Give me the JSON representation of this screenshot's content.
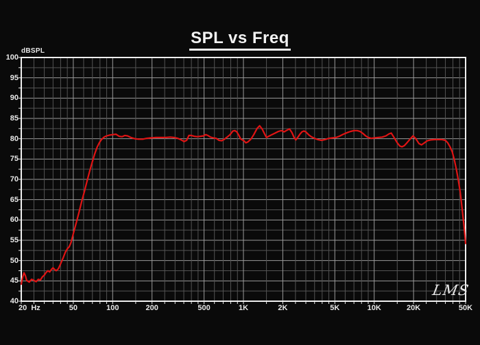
{
  "title": "SPL vs Freq",
  "logo": "LMS",
  "y_axis": {
    "unit_label": "dBSPL",
    "min": 40,
    "max": 100,
    "major_step": 5,
    "minor_step": 2.5,
    "tick_labels": [
      "100",
      "95",
      "90",
      "85",
      "80",
      "75",
      "70",
      "65",
      "60",
      "55",
      "50",
      "45",
      "40"
    ]
  },
  "x_axis": {
    "min_hz": 20,
    "max_hz": 50000,
    "unit_label": "Hz",
    "gridline_freqs": [
      20,
      25,
      30,
      35,
      40,
      45,
      50,
      60,
      70,
      80,
      90,
      100,
      150,
      200,
      250,
      300,
      350,
      400,
      450,
      500,
      600,
      700,
      800,
      900,
      1000,
      1500,
      2000,
      2500,
      3000,
      3500,
      4000,
      4500,
      5000,
      6000,
      7000,
      8000,
      9000,
      10000,
      15000,
      20000,
      25000,
      30000,
      35000,
      40000,
      45000,
      50000
    ],
    "major_freqs": [
      20,
      50,
      100,
      200,
      500,
      1000,
      2000,
      5000,
      10000,
      20000,
      50000
    ],
    "tick_labels": [
      {
        "hz": 20,
        "label": "20  Hz",
        "align": "left"
      },
      {
        "hz": 50,
        "label": "50"
      },
      {
        "hz": 100,
        "label": "100"
      },
      {
        "hz": 200,
        "label": "200"
      },
      {
        "hz": 500,
        "label": "500"
      },
      {
        "hz": 1000,
        "label": "1K"
      },
      {
        "hz": 2000,
        "label": "2K"
      },
      {
        "hz": 5000,
        "label": "5K"
      },
      {
        "hz": 10000,
        "label": "10K"
      },
      {
        "hz": 20000,
        "label": "20K"
      },
      {
        "hz": 50000,
        "label": "50K"
      }
    ]
  },
  "colors": {
    "background": "#0a0a0a",
    "grid_minor": "#545454",
    "grid_major": "#9b9b9b",
    "border": "#f0f0f0",
    "curve": "#e01414",
    "text": "#e9e9e9"
  },
  "chart_data": {
    "type": "line",
    "title": "SPL vs Freq",
    "xlabel": "Hz",
    "ylabel": "dBSPL",
    "x_scale": "log",
    "xlim": [
      20,
      50000
    ],
    "ylim": [
      40,
      100
    ],
    "grid": true,
    "legend": "none",
    "series": [
      {
        "name": "SPL",
        "color": "#e01414",
        "points": [
          [
            20,
            44.2
          ],
          [
            20.5,
            45.9
          ],
          [
            21,
            47.0
          ],
          [
            21.5,
            46.3
          ],
          [
            22,
            45.1
          ],
          [
            23,
            44.7
          ],
          [
            24,
            45.4
          ],
          [
            25,
            45.1
          ],
          [
            26,
            44.8
          ],
          [
            27,
            45.4
          ],
          [
            28,
            45.2
          ],
          [
            29,
            46.0
          ],
          [
            30,
            46.4
          ],
          [
            31,
            47.1
          ],
          [
            32,
            47.5
          ],
          [
            33,
            47.2
          ],
          [
            34,
            47.8
          ],
          [
            35,
            48.2
          ],
          [
            36,
            47.8
          ],
          [
            37,
            47.5
          ],
          [
            38.5,
            48.0
          ],
          [
            40,
            49.2
          ],
          [
            42,
            50.8
          ],
          [
            43.5,
            52.1
          ],
          [
            45,
            52.9
          ],
          [
            46.5,
            53.4
          ],
          [
            48,
            54.4
          ],
          [
            50,
            56.6
          ],
          [
            52,
            58.6
          ],
          [
            55,
            61.6
          ],
          [
            58,
            64.6
          ],
          [
            61,
            67.2
          ],
          [
            64,
            69.8
          ],
          [
            67,
            72.2
          ],
          [
            70,
            74.4
          ],
          [
            73,
            76.3
          ],
          [
            76,
            77.9
          ],
          [
            79,
            79.0
          ],
          [
            82,
            79.8
          ],
          [
            86,
            80.4
          ],
          [
            90,
            80.7
          ],
          [
            95,
            80.9
          ],
          [
            100,
            81.0
          ],
          [
            106,
            81.1
          ],
          [
            112,
            80.6
          ],
          [
            118,
            80.5
          ],
          [
            124,
            80.8
          ],
          [
            130,
            80.7
          ],
          [
            138,
            80.3
          ],
          [
            148,
            80.0
          ],
          [
            158,
            79.9
          ],
          [
            170,
            79.9
          ],
          [
            182,
            80.1
          ],
          [
            195,
            80.2
          ],
          [
            215,
            80.3
          ],
          [
            235,
            80.3
          ],
          [
            255,
            80.3
          ],
          [
            275,
            80.4
          ],
          [
            295,
            80.3
          ],
          [
            315,
            80.1
          ],
          [
            335,
            79.7
          ],
          [
            352,
            79.3
          ],
          [
            368,
            79.6
          ],
          [
            383,
            80.8
          ],
          [
            400,
            80.8
          ],
          [
            420,
            80.6
          ],
          [
            445,
            80.5
          ],
          [
            470,
            80.6
          ],
          [
            495,
            80.7
          ],
          [
            515,
            81.0
          ],
          [
            535,
            80.8
          ],
          [
            560,
            80.4
          ],
          [
            590,
            80.2
          ],
          [
            620,
            80.1
          ],
          [
            650,
            79.6
          ],
          [
            680,
            79.5
          ],
          [
            710,
            79.8
          ],
          [
            750,
            80.4
          ],
          [
            790,
            81.0
          ],
          [
            830,
            81.9
          ],
          [
            860,
            82.0
          ],
          [
            890,
            81.7
          ],
          [
            920,
            80.9
          ],
          [
            950,
            80.0
          ],
          [
            980,
            79.7
          ],
          [
            1010,
            79.5
          ],
          [
            1045,
            79.0
          ],
          [
            1080,
            79.2
          ],
          [
            1140,
            79.9
          ],
          [
            1200,
            81.0
          ],
          [
            1270,
            82.5
          ],
          [
            1330,
            83.2
          ],
          [
            1390,
            82.4
          ],
          [
            1450,
            81.2
          ],
          [
            1500,
            80.3
          ],
          [
            1560,
            80.6
          ],
          [
            1650,
            81.0
          ],
          [
            1750,
            81.4
          ],
          [
            1850,
            81.8
          ],
          [
            1950,
            82.0
          ],
          [
            2050,
            81.7
          ],
          [
            2150,
            82.1
          ],
          [
            2250,
            82.4
          ],
          [
            2350,
            81.5
          ],
          [
            2450,
            80.2
          ],
          [
            2520,
            79.7
          ],
          [
            2600,
            80.3
          ],
          [
            2700,
            81.1
          ],
          [
            2800,
            81.7
          ],
          [
            2900,
            81.9
          ],
          [
            3000,
            81.7
          ],
          [
            3150,
            81.0
          ],
          [
            3300,
            80.5
          ],
          [
            3500,
            80.1
          ],
          [
            3700,
            79.8
          ],
          [
            3950,
            79.6
          ],
          [
            4200,
            79.8
          ],
          [
            4500,
            80.1
          ],
          [
            4800,
            80.2
          ],
          [
            5100,
            80.3
          ],
          [
            5400,
            80.6
          ],
          [
            5800,
            81.1
          ],
          [
            6200,
            81.5
          ],
          [
            6600,
            81.8
          ],
          [
            7000,
            82.0
          ],
          [
            7400,
            82.0
          ],
          [
            7800,
            81.8
          ],
          [
            8200,
            81.3
          ],
          [
            8600,
            80.7
          ],
          [
            9000,
            80.3
          ],
          [
            9500,
            80.1
          ],
          [
            10000,
            80.2
          ],
          [
            10700,
            80.3
          ],
          [
            11500,
            80.4
          ],
          [
            12300,
            80.7
          ],
          [
            13000,
            81.2
          ],
          [
            13500,
            81.4
          ],
          [
            14200,
            80.3
          ],
          [
            15000,
            79.0
          ],
          [
            15700,
            78.2
          ],
          [
            16300,
            78.0
          ],
          [
            17000,
            78.3
          ],
          [
            17800,
            79.0
          ],
          [
            18800,
            79.9
          ],
          [
            19800,
            80.7
          ],
          [
            20800,
            80.0
          ],
          [
            22000,
            78.8
          ],
          [
            23000,
            78.5
          ],
          [
            24000,
            78.9
          ],
          [
            25500,
            79.5
          ],
          [
            27000,
            79.7
          ],
          [
            29000,
            79.8
          ],
          [
            31000,
            79.8
          ],
          [
            33000,
            79.8
          ],
          [
            35000,
            79.6
          ],
          [
            36500,
            79.0
          ],
          [
            38000,
            78.0
          ],
          [
            39500,
            76.8
          ],
          [
            41000,
            74.8
          ],
          [
            42500,
            72.5
          ],
          [
            44000,
            69.8
          ],
          [
            45500,
            66.8
          ],
          [
            47000,
            62.8
          ],
          [
            48500,
            58.8
          ],
          [
            50000,
            54.2
          ]
        ]
      }
    ]
  }
}
